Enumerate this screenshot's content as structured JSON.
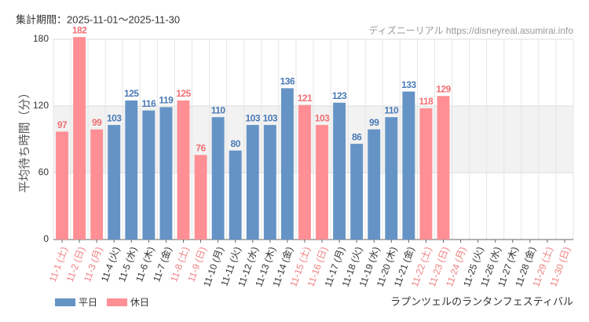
{
  "chart_data": {
    "type": "bar",
    "title": "集計期間：2025-11-01～2025-11-30",
    "source": "ディズニーリアル https://disneyreal.asumirai.info",
    "y_label": "平均待ち時間（分）",
    "subject": "ラプンツェルのランタンフェスティバル",
    "categories": [
      "11-1 (土)",
      "11-2 (日)",
      "11-3 (月)",
      "11-4 (火)",
      "11-5 (水)",
      "11-6 (木)",
      "11-7 (金)",
      "11-8 (土)",
      "11-9 (日)",
      "11-10 (月)",
      "11-11 (火)",
      "11-12 (水)",
      "11-13 (木)",
      "11-14 (金)",
      "11-15 (土)",
      "11-16 (日)",
      "11-17 (月)",
      "11-18 (火)",
      "11-19 (水)",
      "11-20 (木)",
      "11-21 (金)",
      "11-22 (土)",
      "11-23 (日)",
      "11-24 (月)",
      "11-25 (火)",
      "11-26 (水)",
      "11-27 (木)",
      "11-28 (金)",
      "11-29 (土)",
      "11-30 (日)"
    ],
    "category_colors": [
      "#f08080",
      "#f08080",
      "#f08080",
      "#333333",
      "#333333",
      "#333333",
      "#333333",
      "#f08080",
      "#f08080",
      "#333333",
      "#333333",
      "#333333",
      "#333333",
      "#333333",
      "#f08080",
      "#f08080",
      "#333333",
      "#333333",
      "#333333",
      "#333333",
      "#333333",
      "#f08080",
      "#f08080",
      "#f08080",
      "#333333",
      "#333333",
      "#333333",
      "#333333",
      "#f08080",
      "#f08080"
    ],
    "series": [
      {
        "name": "平日",
        "color": "#6593c6",
        "label_color": "#4a7ab5",
        "values": [
          null,
          null,
          null,
          103,
          125,
          116,
          119,
          null,
          null,
          110,
          80,
          103,
          103,
          136,
          null,
          null,
          123,
          86,
          99,
          110,
          133,
          null,
          null,
          null,
          null,
          null,
          null,
          null,
          null,
          null
        ]
      },
      {
        "name": "休日",
        "color": "#ff8f94",
        "label_color": "#f07075",
        "values": [
          97,
          182,
          99,
          null,
          null,
          null,
          null,
          125,
          76,
          null,
          null,
          null,
          null,
          null,
          121,
          103,
          null,
          null,
          null,
          null,
          null,
          118,
          129,
          null,
          null,
          null,
          null,
          null,
          null,
          null
        ]
      }
    ],
    "ylim": [
      0,
      180
    ],
    "yticks": [
      0,
      60,
      120,
      180
    ],
    "shaded_range": [
      60,
      120
    ],
    "grid": true
  }
}
